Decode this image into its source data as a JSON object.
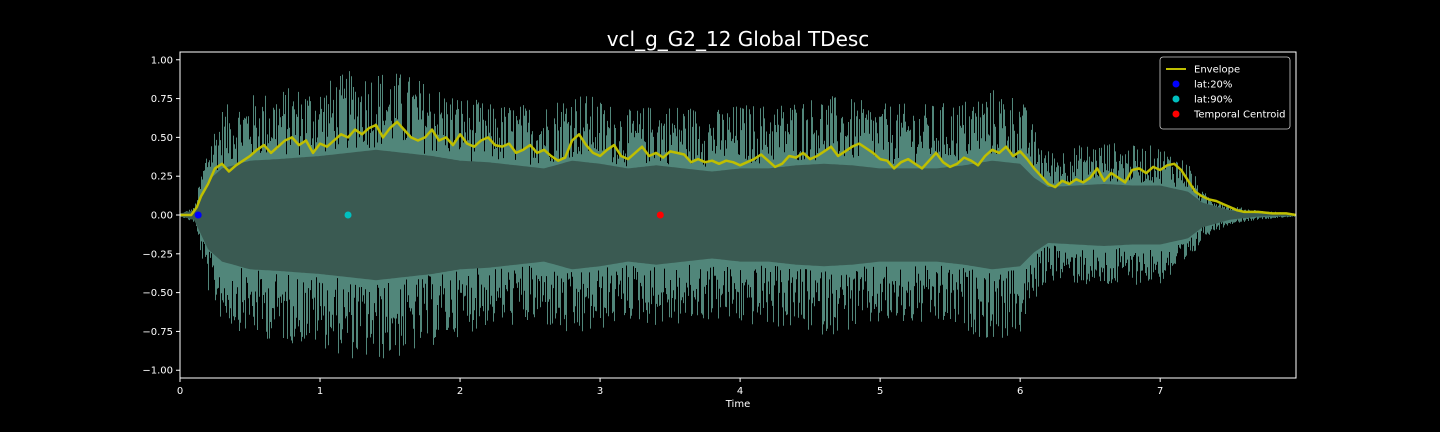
{
  "chart_data": {
    "type": "line",
    "title": "vcl_g_G2_12 Global TDesc",
    "xlabel": "Time",
    "ylabel": "",
    "xlim": [
      0,
      7.97
    ],
    "ylim": [
      -1.05,
      1.05
    ],
    "x_ticks": [
      0,
      1,
      2,
      3,
      4,
      5,
      6,
      7
    ],
    "x_tick_labels": [
      "0",
      "1",
      "2",
      "3",
      "4",
      "5",
      "6",
      "7"
    ],
    "y_ticks": [
      1.0,
      0.75,
      0.5,
      0.25,
      0.0,
      -0.25,
      -0.5,
      -0.75,
      -1.0
    ],
    "y_tick_labels": [
      "1.00",
      "0.75",
      "0.50",
      "0.25",
      "0.00",
      "−0.25",
      "−0.50",
      "−0.75",
      "−1.00"
    ],
    "grid": false,
    "legend_position": "top-right",
    "waveform": {
      "color": "#5f9e8f",
      "fill_color": "#3a5a52",
      "x": [
        0,
        0.1,
        0.2,
        0.3,
        0.5,
        0.7,
        1.0,
        1.2,
        1.4,
        1.6,
        1.8,
        2.0,
        2.2,
        2.4,
        2.6,
        2.8,
        3.0,
        3.2,
        3.4,
        3.6,
        3.8,
        4.0,
        4.2,
        4.4,
        4.6,
        4.8,
        5.0,
        5.2,
        5.4,
        5.6,
        5.8,
        6.0,
        6.1,
        6.2,
        6.4,
        6.6,
        6.8,
        7.0,
        7.2,
        7.3,
        7.5,
        7.7,
        7.97
      ],
      "peak": [
        0.01,
        0.05,
        0.5,
        0.7,
        0.78,
        0.82,
        0.85,
        0.93,
        0.95,
        0.92,
        0.85,
        0.78,
        0.72,
        0.72,
        0.72,
        0.82,
        0.75,
        0.68,
        0.72,
        0.72,
        0.68,
        0.72,
        0.72,
        0.75,
        0.78,
        0.75,
        0.72,
        0.72,
        0.72,
        0.75,
        0.82,
        0.78,
        0.56,
        0.42,
        0.45,
        0.48,
        0.45,
        0.45,
        0.35,
        0.15,
        0.06,
        0.03,
        0.01
      ],
      "dense": [
        0.01,
        0.03,
        0.22,
        0.3,
        0.35,
        0.36,
        0.38,
        0.4,
        0.42,
        0.4,
        0.38,
        0.35,
        0.34,
        0.32,
        0.3,
        0.35,
        0.33,
        0.3,
        0.32,
        0.3,
        0.28,
        0.3,
        0.3,
        0.32,
        0.33,
        0.32,
        0.3,
        0.3,
        0.3,
        0.32,
        0.35,
        0.33,
        0.24,
        0.18,
        0.19,
        0.2,
        0.19,
        0.19,
        0.15,
        0.08,
        0.03,
        0.01,
        0.005
      ]
    },
    "series": [
      {
        "name": "Envelope",
        "color": "#bfbf00",
        "x": [
          0,
          0.08,
          0.12,
          0.15,
          0.2,
          0.25,
          0.3,
          0.35,
          0.4,
          0.45,
          0.5,
          0.55,
          0.6,
          0.65,
          0.7,
          0.75,
          0.8,
          0.85,
          0.9,
          0.95,
          1.0,
          1.05,
          1.1,
          1.15,
          1.2,
          1.25,
          1.3,
          1.35,
          1.4,
          1.45,
          1.5,
          1.55,
          1.6,
          1.65,
          1.7,
          1.75,
          1.8,
          1.85,
          1.9,
          1.95,
          2.0,
          2.05,
          2.1,
          2.15,
          2.2,
          2.25,
          2.3,
          2.35,
          2.4,
          2.45,
          2.5,
          2.55,
          2.6,
          2.65,
          2.7,
          2.75,
          2.8,
          2.85,
          2.9,
          2.95,
          3.0,
          3.05,
          3.1,
          3.15,
          3.2,
          3.25,
          3.3,
          3.35,
          3.4,
          3.45,
          3.5,
          3.55,
          3.6,
          3.65,
          3.7,
          3.75,
          3.8,
          3.85,
          3.9,
          3.95,
          4.0,
          4.05,
          4.1,
          4.15,
          4.2,
          4.25,
          4.3,
          4.35,
          4.4,
          4.45,
          4.5,
          4.55,
          4.6,
          4.65,
          4.7,
          4.75,
          4.8,
          4.85,
          4.9,
          4.95,
          5.0,
          5.05,
          5.1,
          5.15,
          5.2,
          5.25,
          5.3,
          5.35,
          5.4,
          5.45,
          5.5,
          5.55,
          5.6,
          5.65,
          5.7,
          5.75,
          5.8,
          5.85,
          5.9,
          5.95,
          6.0,
          6.05,
          6.1,
          6.15,
          6.2,
          6.25,
          6.3,
          6.35,
          6.4,
          6.45,
          6.5,
          6.55,
          6.6,
          6.65,
          6.7,
          6.75,
          6.8,
          6.85,
          6.9,
          6.95,
          7.0,
          7.05,
          7.1,
          7.15,
          7.2,
          7.25,
          7.3,
          7.35,
          7.4,
          7.45,
          7.5,
          7.55,
          7.6,
          7.7,
          7.8,
          7.9,
          7.97
        ],
        "y": [
          0.0,
          0.0,
          0.05,
          0.12,
          0.2,
          0.3,
          0.33,
          0.28,
          0.32,
          0.35,
          0.38,
          0.42,
          0.45,
          0.4,
          0.44,
          0.48,
          0.5,
          0.45,
          0.48,
          0.4,
          0.46,
          0.44,
          0.48,
          0.52,
          0.5,
          0.55,
          0.52,
          0.56,
          0.58,
          0.5,
          0.56,
          0.6,
          0.55,
          0.5,
          0.48,
          0.5,
          0.55,
          0.48,
          0.5,
          0.45,
          0.52,
          0.46,
          0.44,
          0.48,
          0.5,
          0.45,
          0.44,
          0.46,
          0.4,
          0.42,
          0.45,
          0.4,
          0.42,
          0.38,
          0.35,
          0.37,
          0.48,
          0.52,
          0.45,
          0.4,
          0.38,
          0.42,
          0.45,
          0.38,
          0.36,
          0.4,
          0.44,
          0.38,
          0.4,
          0.37,
          0.41,
          0.4,
          0.39,
          0.34,
          0.36,
          0.34,
          0.35,
          0.33,
          0.35,
          0.34,
          0.32,
          0.34,
          0.36,
          0.39,
          0.35,
          0.31,
          0.33,
          0.38,
          0.37,
          0.4,
          0.36,
          0.38,
          0.41,
          0.44,
          0.38,
          0.41,
          0.44,
          0.46,
          0.43,
          0.4,
          0.36,
          0.35,
          0.3,
          0.34,
          0.36,
          0.33,
          0.3,
          0.35,
          0.4,
          0.34,
          0.31,
          0.33,
          0.37,
          0.35,
          0.32,
          0.38,
          0.42,
          0.4,
          0.44,
          0.38,
          0.41,
          0.36,
          0.3,
          0.25,
          0.2,
          0.18,
          0.22,
          0.2,
          0.23,
          0.21,
          0.24,
          0.3,
          0.22,
          0.27,
          0.24,
          0.21,
          0.29,
          0.3,
          0.27,
          0.31,
          0.29,
          0.32,
          0.33,
          0.29,
          0.22,
          0.15,
          0.12,
          0.1,
          0.09,
          0.07,
          0.05,
          0.03,
          0.02,
          0.02,
          0.01,
          0.01,
          0.0
        ]
      }
    ],
    "markers": [
      {
        "name": "lat:20%",
        "color": "#0000ff",
        "x": 0.13,
        "y": 0.0
      },
      {
        "name": "lat:90%",
        "color": "#00bfbf",
        "x": 1.2,
        "y": 0.0
      },
      {
        "name": "Temporal Centroid",
        "color": "#ff0000",
        "x": 3.43,
        "y": 0.0
      }
    ]
  }
}
